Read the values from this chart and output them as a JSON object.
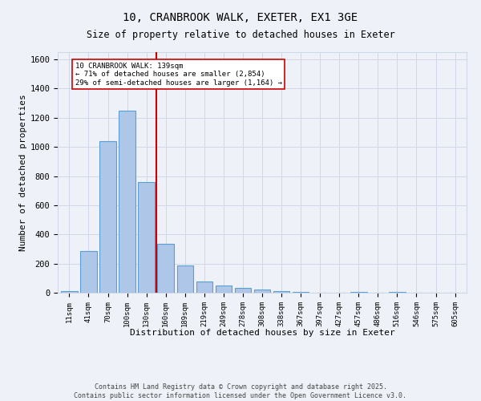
{
  "title_line1": "10, CRANBROOK WALK, EXETER, EX1 3GE",
  "title_line2": "Size of property relative to detached houses in Exeter",
  "xlabel": "Distribution of detached houses by size in Exeter",
  "ylabel": "Number of detached properties",
  "bar_labels": [
    "11sqm",
    "41sqm",
    "70sqm",
    "100sqm",
    "130sqm",
    "160sqm",
    "189sqm",
    "219sqm",
    "249sqm",
    "278sqm",
    "308sqm",
    "338sqm",
    "367sqm",
    "397sqm",
    "427sqm",
    "457sqm",
    "486sqm",
    "516sqm",
    "546sqm",
    "575sqm",
    "605sqm"
  ],
  "bar_values": [
    10,
    285,
    1040,
    1250,
    760,
    335,
    185,
    75,
    48,
    35,
    22,
    12,
    8,
    0,
    0,
    7,
    0,
    7,
    0,
    0,
    0
  ],
  "bar_color": "#aec6e8",
  "bar_edge_color": "#5a9fd4",
  "vline_x": 4.5,
  "vline_color": "#cc0000",
  "annotation_title": "10 CRANBROOK WALK: 139sqm",
  "annotation_line1": "← 71% of detached houses are smaller (2,854)",
  "annotation_line2": "29% of semi-detached houses are larger (1,164) →",
  "annotation_box_color": "#ffffff",
  "annotation_box_edge": "#cc0000",
  "ylim": [
    0,
    1650
  ],
  "yticks": [
    0,
    200,
    400,
    600,
    800,
    1000,
    1200,
    1400,
    1600
  ],
  "grid_color": "#d0d8e8",
  "bg_color": "#eef2f8",
  "footer_line1": "Contains HM Land Registry data © Crown copyright and database right 2025.",
  "footer_line2": "Contains public sector information licensed under the Open Government Licence v3.0."
}
